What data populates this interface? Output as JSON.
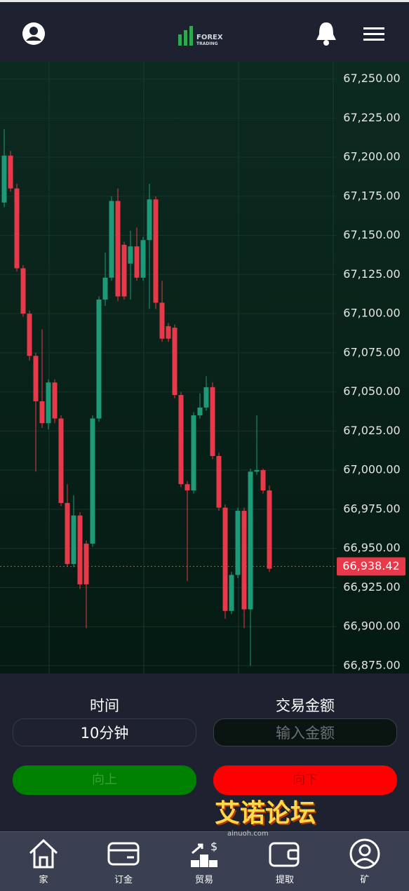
{
  "header": {
    "logo_line1": "FOREX",
    "logo_line2": "TRADING"
  },
  "chart_data": {
    "type": "candlestick",
    "open": [
      67171,
      67201,
      67180,
      67129,
      67100,
      67073,
      67044,
      67030,
      67056,
      67033,
      66979,
      66940,
      66971,
      66953,
      66953,
      67033,
      67109,
      67123,
      67172,
      67144,
      67132,
      67143,
      67123,
      67147,
      67173,
      67107,
      67092,
      67091,
      67048,
      66991,
      66987,
      67035,
      67040,
      67053,
      67009,
      66976,
      66910,
      66933,
      66974,
      66911,
      66999,
      67000,
      66987
    ],
    "high": [
      67218,
      67204,
      67183,
      67131,
      67102,
      67075,
      67090,
      67058,
      67058,
      67035,
      66991,
      66984,
      66973,
      66955,
      67035,
      67111,
      67139,
      67175,
      67180,
      67146,
      67153,
      67155,
      67149,
      67183,
      67175,
      67121,
      67094,
      67093,
      67050,
      66993,
      67037,
      67049,
      67060,
      67056,
      67011,
      66978,
      66935,
      66976,
      66976,
      67001,
      67035,
      67001,
      66990
    ],
    "low": [
      67168,
      67178,
      67127,
      67098,
      67070,
      66999,
      67027,
      67026,
      67030,
      66977,
      66938,
      66938,
      66924,
      66899,
      66951,
      67031,
      67105,
      67121,
      67108,
      67109,
      67109,
      67121,
      67121,
      67103,
      67103,
      67082,
      67082,
      67046,
      66989,
      66929,
      66985,
      67033,
      67038,
      67007,
      66974,
      66905,
      66908,
      66931,
      66899,
      66875,
      66997,
      66985,
      66935
    ],
    "close": [
      67201,
      67180,
      67129,
      67100,
      67073,
      67044,
      67030,
      67056,
      67033,
      66979,
      66940,
      66971,
      66927,
      66927,
      67033,
      67109,
      67123,
      67172,
      67111,
      67111,
      67143,
      67123,
      67147,
      67173,
      67107,
      67084,
      67084,
      67048,
      66991,
      66987,
      67035,
      67040,
      67053,
      67009,
      66976,
      66910,
      66933,
      66974,
      66911,
      66999,
      67000,
      66987,
      66937
    ],
    "up_color": "#1f9a78",
    "down_color": "#e8394a",
    "ylim": [
      66870,
      67261
    ],
    "yticks": [
      {
        "value": 67250,
        "label": "67,250.00"
      },
      {
        "value": 67225,
        "label": "67,225.00"
      },
      {
        "value": 67200,
        "label": "67,200.00"
      },
      {
        "value": 67175,
        "label": "67,175.00"
      },
      {
        "value": 67150,
        "label": "67,150.00"
      },
      {
        "value": 67125,
        "label": "67,125.00"
      },
      {
        "value": 67100,
        "label": "67,100.00"
      },
      {
        "value": 67075,
        "label": "67,075.00"
      },
      {
        "value": 67050,
        "label": "67,050.00"
      },
      {
        "value": 67025,
        "label": "67,025.00"
      },
      {
        "value": 67000,
        "label": "67,000.00"
      },
      {
        "value": 66975,
        "label": "66,975.00"
      },
      {
        "value": 66950,
        "label": "66,950.00"
      },
      {
        "value": 66925,
        "label": "66,925.00"
      },
      {
        "value": 66900,
        "label": "66,900.00"
      },
      {
        "value": 66875,
        "label": "66,875.00"
      }
    ],
    "grid": true,
    "last_price": 66938.42,
    "last_price_label": "66,938.42"
  },
  "trade_panel": {
    "time_label": "时间",
    "time_value": "10分钟",
    "amount_label": "交易金额",
    "amount_placeholder": "输入金额",
    "up_button": "向上",
    "down_button": "向下"
  },
  "nav": [
    "家",
    "订金",
    "贸易",
    "提取",
    "矿"
  ],
  "watermark": {
    "title": "艾诺论坛",
    "site": "ainuoh.com"
  }
}
